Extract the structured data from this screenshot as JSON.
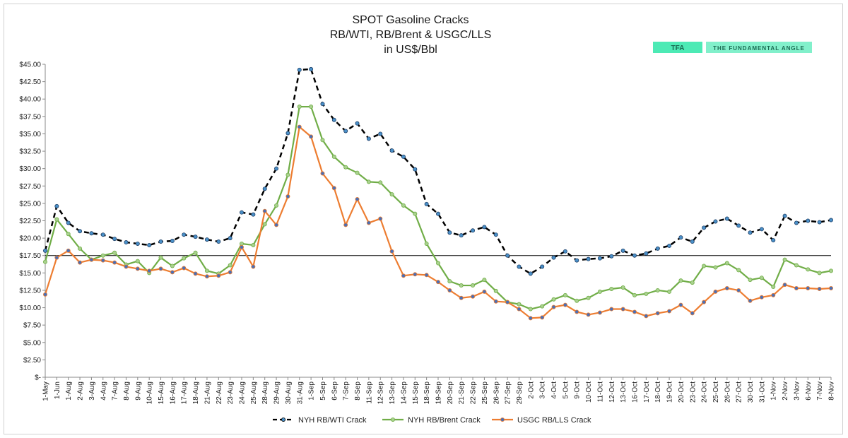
{
  "chart_data": {
    "type": "line",
    "title": [
      "SPOT Gasoline Cracks",
      "RB/WTI, RB/Brent & USGC/LLS",
      "in US$/Bbl"
    ],
    "logo": {
      "mark": "TFA",
      "name": "THE FUNDAMENTAL ANGLE"
    },
    "ylim": [
      0,
      45
    ],
    "yticks": [
      "$-",
      "$2.50",
      "$5.00",
      "$7.50",
      "$10.00",
      "$12.50",
      "$15.00",
      "$17.50",
      "$20.00",
      "$22.50",
      "$25.00",
      "$27.50",
      "$30.00",
      "$32.50",
      "$35.00",
      "$37.50",
      "$40.00",
      "$42.50",
      "$45.00"
    ],
    "reference_line": 17.5,
    "categories": [
      "1-May",
      "1-Jun",
      "1-Aug",
      "2-Aug",
      "3-Aug",
      "4-Aug",
      "7-Aug",
      "8-Aug",
      "9-Aug",
      "10-Aug",
      "15-Aug",
      "16-Aug",
      "17-Aug",
      "18-Aug",
      "21-Aug",
      "22-Aug",
      "23-Aug",
      "24-Aug",
      "25-Aug",
      "28-Aug",
      "29-Aug",
      "30-Aug",
      "31-Aug",
      "1-Sep",
      "5-Sep",
      "6-Sep",
      "7-Sep",
      "8-Sep",
      "11-Sep",
      "12-Sep",
      "13-Sep",
      "14-Sep",
      "15-Sep",
      "18-Sep",
      "19-Sep",
      "20-Sep",
      "21-Sep",
      "22-Sep",
      "25-Sep",
      "26-Sep",
      "27-Sep",
      "29-Sep",
      "2-Oct",
      "3-Oct",
      "4-Oct",
      "5-Oct",
      "9-Oct",
      "10-Oct",
      "11-Oct",
      "12-Oct",
      "13-Oct",
      "16-Oct",
      "17-Oct",
      "18-Oct",
      "19-Oct",
      "20-Oct",
      "23-Oct",
      "24-Oct",
      "25-Oct",
      "26-Oct",
      "27-Oct",
      "30-Oct",
      "31-Oct",
      "1-Nov",
      "2-Nov",
      "3-Nov",
      "6-Nov",
      "7-Nov",
      "8-Nov"
    ],
    "series": [
      {
        "name": "NYH RB/WTI Crack",
        "color": "#000000",
        "dash": true,
        "marker": "#4a90c8",
        "values": [
          18.2,
          24.6,
          22.2,
          21.0,
          20.7,
          20.5,
          19.9,
          19.4,
          19.2,
          19.0,
          19.5,
          19.6,
          20.5,
          20.2,
          19.8,
          19.5,
          20.0,
          23.7,
          23.4,
          27.1,
          30.0,
          35.1,
          44.2,
          44.3,
          39.3,
          37.0,
          35.4,
          36.5,
          34.3,
          35.0,
          32.6,
          31.7,
          29.9,
          24.9,
          23.5,
          20.8,
          20.4,
          21.1,
          21.6,
          20.5,
          17.5,
          15.9,
          14.9,
          15.9,
          17.2,
          18.1,
          16.8,
          17.0,
          17.1,
          17.4,
          18.2,
          17.5,
          17.8,
          18.5,
          18.9,
          20.1,
          19.5,
          21.5,
          22.4,
          22.8,
          21.8,
          20.8,
          21.3,
          19.7,
          23.2,
          22.2,
          22.5,
          22.3,
          22.6
        ]
      },
      {
        "name": "NYH RB/Brent Crack",
        "color": "#70ad47",
        "dash": false,
        "marker": "#a9d18e",
        "values": [
          16.6,
          22.7,
          20.6,
          18.5,
          16.9,
          17.5,
          17.9,
          16.2,
          16.7,
          15.0,
          17.2,
          16.0,
          17.1,
          17.9,
          15.3,
          14.9,
          16.1,
          19.2,
          19.0,
          22.0,
          24.7,
          29.1,
          38.9,
          38.9,
          34.1,
          31.7,
          30.2,
          29.4,
          28.1,
          28.0,
          26.3,
          24.7,
          23.5,
          19.2,
          16.4,
          13.8,
          13.2,
          13.2,
          14.0,
          12.4,
          10.8,
          10.5,
          9.8,
          10.2,
          11.2,
          11.8,
          11.0,
          11.4,
          12.3,
          12.7,
          12.9,
          11.8,
          12.0,
          12.5,
          12.3,
          13.9,
          13.6,
          16.0,
          15.8,
          16.4,
          15.4,
          14.0,
          14.3,
          13.0,
          16.9,
          16.1,
          15.5,
          15.0,
          15.3
        ]
      },
      {
        "name": "USGC RB/LLS Crack",
        "color": "#ed7d31",
        "dash": false,
        "marker": "#4a6fb5",
        "values": [
          11.9,
          17.2,
          18.2,
          16.5,
          16.9,
          16.8,
          16.5,
          15.9,
          15.6,
          15.3,
          15.6,
          15.1,
          15.7,
          14.9,
          14.5,
          14.6,
          15.1,
          18.7,
          15.9,
          23.9,
          21.9,
          26.0,
          36.0,
          34.6,
          29.3,
          27.2,
          21.9,
          25.6,
          22.2,
          22.8,
          18.1,
          14.6,
          14.8,
          14.7,
          13.7,
          12.5,
          11.4,
          11.6,
          12.3,
          10.9,
          10.8,
          9.8,
          8.5,
          8.6,
          10.1,
          10.4,
          9.4,
          9.0,
          9.3,
          9.8,
          9.8,
          9.4,
          8.8,
          9.2,
          9.5,
          10.4,
          9.2,
          10.8,
          12.3,
          12.8,
          12.5,
          11.0,
          11.5,
          11.8,
          13.3,
          12.8,
          12.8,
          12.7,
          12.8
        ]
      }
    ],
    "legend_position": "bottom"
  }
}
